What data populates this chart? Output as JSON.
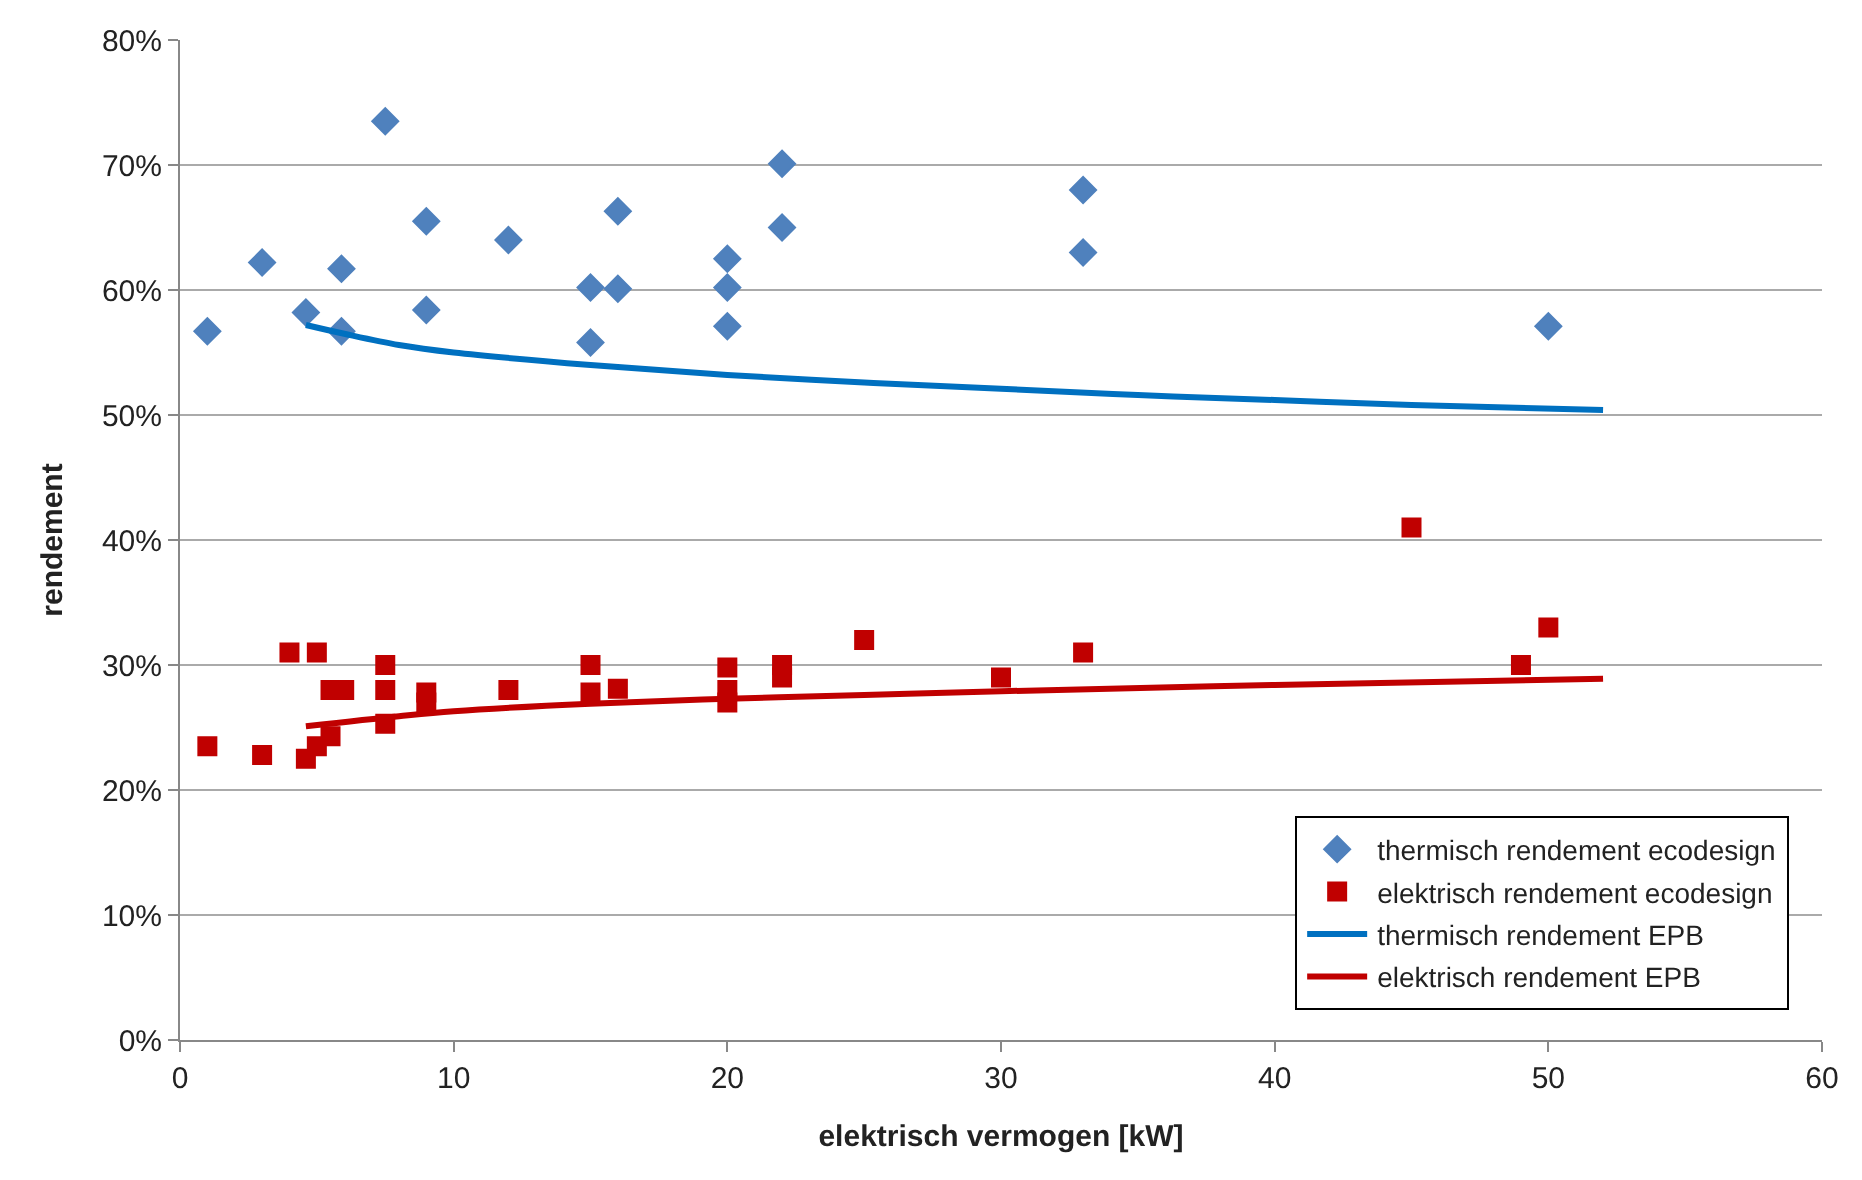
{
  "chart_data": {
    "type": "scatter",
    "xlabel": "elektrisch vermogen [kW]",
    "ylabel": "rendement",
    "xlim": [
      0,
      60
    ],
    "xticks": [
      0,
      10,
      20,
      30,
      40,
      50,
      60
    ],
    "ylim": [
      0,
      80
    ],
    "yticks": [
      {
        "value": 0,
        "label": "0%"
      },
      {
        "value": 10,
        "label": "10%"
      },
      {
        "value": 20,
        "label": "20%"
      },
      {
        "value": 30,
        "label": "30%"
      },
      {
        "value": 40,
        "label": "40%"
      },
      {
        "value": 50,
        "label": "50%"
      },
      {
        "value": 60,
        "label": "60%"
      },
      {
        "value": 70,
        "label": "70%"
      },
      {
        "value": 80,
        "label": "80%"
      }
    ],
    "grid": "y",
    "legend": "bottom right",
    "series": [
      {
        "name": "thermisch rendement ecodesign",
        "marker": "diamond",
        "color": "#4f81bd",
        "x": [
          1,
          3,
          4.6,
          5.9,
          5.9,
          7.5,
          9,
          9,
          12,
          15,
          15,
          16,
          16,
          20,
          20,
          20,
          22,
          22,
          33,
          33,
          50
        ],
        "values": [
          56.7,
          62.2,
          58.2,
          61.7,
          56.7,
          73.5,
          65.5,
          58.4,
          64,
          60.2,
          55.8,
          66.3,
          60.1,
          62.5,
          60.2,
          57.1,
          70.1,
          65,
          68,
          63,
          57.1
        ]
      },
      {
        "name": "elektrisch rendement ecodesign",
        "marker": "square",
        "color": "#c00000",
        "x": [
          1,
          3,
          4,
          4.6,
          5,
          5,
          5.5,
          5.5,
          6,
          7.5,
          7.5,
          7.5,
          9,
          9,
          12,
          15,
          15,
          16,
          20,
          20,
          20,
          22,
          22,
          25,
          30,
          33,
          45,
          49,
          50
        ],
        "values": [
          23.5,
          22.8,
          31,
          22.5,
          31,
          23.5,
          28,
          24.3,
          28,
          30,
          28,
          25.3,
          27.8,
          27,
          28,
          30,
          27.8,
          28.1,
          29.8,
          28,
          27,
          30,
          29,
          32,
          29,
          31,
          41,
          30,
          33
        ]
      },
      {
        "name": "thermisch rendement EPB",
        "type": "line",
        "marker": "none",
        "color": "#0070c0",
        "x": [
          4.6,
          6,
          8,
          10,
          15,
          20,
          25,
          30,
          35,
          40,
          45,
          52
        ],
        "values": [
          57.2,
          56.5,
          55.6,
          55,
          54,
          53.2,
          52.6,
          52.1,
          51.6,
          51.2,
          50.8,
          50.4
        ]
      },
      {
        "name": "elektrisch rendement EPB",
        "type": "line",
        "marker": "none",
        "color": "#c00000",
        "x": [
          4.6,
          8,
          10,
          15,
          20,
          25,
          30,
          40,
          52
        ],
        "values": [
          25.1,
          25.9,
          26.3,
          26.9,
          27.3,
          27.6,
          27.9,
          28.4,
          28.9
        ]
      }
    ]
  }
}
